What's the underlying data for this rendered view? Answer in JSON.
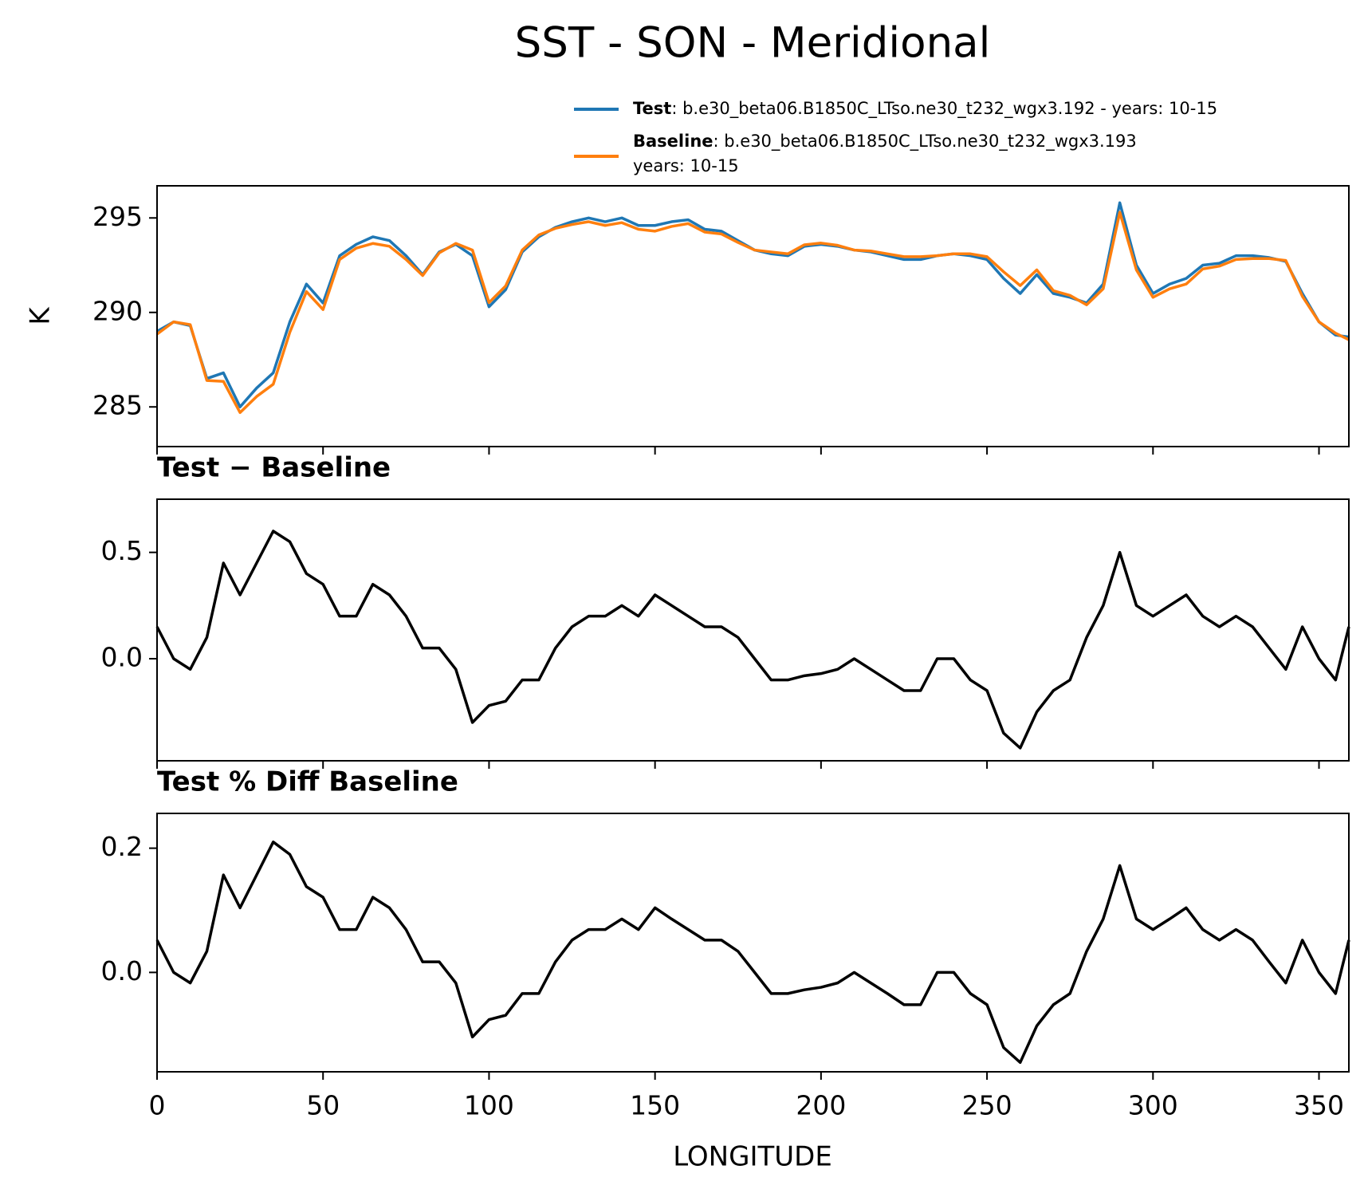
{
  "title": "SST - SON - Meridional",
  "xlabel": "LONGITUDE",
  "chart_data": [
    {
      "type": "line",
      "ylabel": "K",
      "x": [
        0,
        5,
        10,
        15,
        20,
        25,
        30,
        35,
        40,
        45,
        50,
        55,
        60,
        65,
        70,
        75,
        80,
        85,
        90,
        95,
        100,
        105,
        110,
        115,
        120,
        125,
        130,
        135,
        140,
        145,
        150,
        155,
        160,
        165,
        170,
        175,
        180,
        185,
        190,
        195,
        200,
        205,
        210,
        215,
        220,
        225,
        230,
        235,
        240,
        245,
        250,
        255,
        260,
        265,
        270,
        275,
        280,
        285,
        290,
        295,
        300,
        305,
        310,
        315,
        320,
        325,
        330,
        335,
        340,
        345,
        350,
        355,
        359
      ],
      "series": [
        {
          "name": "Test",
          "desc": ": b.e30_beta06.B1850C_LTso.ne30_t232_wgx3.192 - years: 10-15",
          "color": "#1f77b4",
          "values": [
            289.0,
            289.5,
            289.3,
            286.5,
            286.8,
            285.0,
            286.0,
            286.8,
            289.5,
            291.5,
            290.5,
            293.0,
            293.6,
            294.0,
            293.8,
            293.0,
            292.0,
            293.2,
            293.6,
            293.0,
            290.3,
            291.2,
            293.2,
            294.0,
            294.5,
            294.8,
            295.0,
            294.8,
            295.0,
            294.6,
            294.6,
            294.8,
            294.9,
            294.4,
            294.3,
            293.8,
            293.3,
            293.1,
            293.0,
            293.5,
            293.6,
            293.5,
            293.3,
            293.2,
            293.0,
            292.8,
            292.8,
            293.0,
            293.1,
            293.0,
            292.8,
            291.8,
            291.0,
            292.0,
            291.0,
            290.8,
            290.5,
            291.5,
            295.8,
            292.5,
            291.0,
            291.5,
            291.8,
            292.5,
            292.6,
            293.0,
            293.0,
            292.9,
            292.7,
            291.0,
            289.5,
            288.8,
            288.7
          ]
        },
        {
          "name": "Baseline",
          "desc": ": b.e30_beta06.B1850C_LTso.ne30_t232_wgx3.193",
          "desc2": "years: 10-15",
          "color": "#ff7f0e",
          "values": [
            288.85,
            289.5,
            289.35,
            286.4,
            286.35,
            284.7,
            285.55,
            286.2,
            288.95,
            291.1,
            290.15,
            292.8,
            293.4,
            293.65,
            293.5,
            292.8,
            291.95,
            293.15,
            293.65,
            293.3,
            290.52,
            291.4,
            293.3,
            294.1,
            294.45,
            294.65,
            294.8,
            294.6,
            294.75,
            294.4,
            294.3,
            294.55,
            294.7,
            294.25,
            294.15,
            293.7,
            293.3,
            293.2,
            293.1,
            293.58,
            293.67,
            293.55,
            293.3,
            293.25,
            293.1,
            292.95,
            292.95,
            293.0,
            293.1,
            293.1,
            292.95,
            292.15,
            291.42,
            292.25,
            291.15,
            290.9,
            290.4,
            291.25,
            295.3,
            292.25,
            290.8,
            291.25,
            291.5,
            292.3,
            292.45,
            292.8,
            292.85,
            292.85,
            292.75,
            290.85,
            289.5,
            288.9,
            288.55
          ]
        }
      ],
      "xlim": [
        0,
        359
      ],
      "xticks": [
        0,
        50,
        100,
        150,
        200,
        250,
        300,
        350
      ],
      "ylim": [
        282.9,
        296.7
      ],
      "yticks": [
        285,
        290,
        295
      ]
    },
    {
      "type": "line",
      "title": "Test − Baseline",
      "x": [
        0,
        5,
        10,
        15,
        20,
        25,
        30,
        35,
        40,
        45,
        50,
        55,
        60,
        65,
        70,
        75,
        80,
        85,
        90,
        95,
        100,
        105,
        110,
        115,
        120,
        125,
        130,
        135,
        140,
        145,
        150,
        155,
        160,
        165,
        170,
        175,
        180,
        185,
        190,
        195,
        200,
        205,
        210,
        215,
        220,
        225,
        230,
        235,
        240,
        245,
        250,
        255,
        260,
        265,
        270,
        275,
        280,
        285,
        290,
        295,
        300,
        305,
        310,
        315,
        320,
        325,
        330,
        335,
        340,
        345,
        350,
        355,
        359
      ],
      "series": [
        {
          "color": "#000000",
          "values": [
            0.15,
            0.0,
            -0.05,
            0.1,
            0.45,
            0.3,
            0.45,
            0.6,
            0.55,
            0.4,
            0.35,
            0.2,
            0.2,
            0.35,
            0.3,
            0.2,
            0.05,
            0.05,
            -0.05,
            -0.3,
            -0.22,
            -0.2,
            -0.1,
            -0.1,
            0.05,
            0.15,
            0.2,
            0.2,
            0.25,
            0.2,
            0.3,
            0.25,
            0.2,
            0.15,
            0.15,
            0.1,
            0.0,
            -0.1,
            -0.1,
            -0.08,
            -0.07,
            -0.05,
            0.0,
            -0.05,
            -0.1,
            -0.15,
            -0.15,
            0.0,
            0.0,
            -0.1,
            -0.15,
            -0.35,
            -0.42,
            -0.25,
            -0.15,
            -0.1,
            0.1,
            0.25,
            0.5,
            0.25,
            0.2,
            0.25,
            0.3,
            0.2,
            0.15,
            0.2,
            0.15,
            0.05,
            -0.05,
            0.15,
            0.0,
            -0.1,
            0.15
          ]
        }
      ],
      "xlim": [
        0,
        359
      ],
      "xticks": [
        0,
        50,
        100,
        150,
        200,
        250,
        300,
        350
      ],
      "ylim": [
        -0.48,
        0.75
      ],
      "yticks": [
        {
          "value": 0,
          "label": "0.0"
        },
        0.5
      ]
    },
    {
      "type": "line",
      "title": "Test % Diff Baseline",
      "x": [
        0,
        5,
        10,
        15,
        20,
        25,
        30,
        35,
        40,
        45,
        50,
        55,
        60,
        65,
        70,
        75,
        80,
        85,
        90,
        95,
        100,
        105,
        110,
        115,
        120,
        125,
        130,
        135,
        140,
        145,
        150,
        155,
        160,
        165,
        170,
        175,
        180,
        185,
        190,
        195,
        200,
        205,
        210,
        215,
        220,
        225,
        230,
        235,
        240,
        245,
        250,
        255,
        260,
        265,
        270,
        275,
        280,
        285,
        290,
        295,
        300,
        305,
        310,
        315,
        320,
        325,
        330,
        335,
        340,
        345,
        350,
        355,
        359
      ],
      "series": [
        {
          "color": "#000000",
          "values": [
            0.052,
            0.0,
            -0.017,
            0.034,
            0.157,
            0.104,
            0.157,
            0.21,
            0.19,
            0.138,
            0.121,
            0.069,
            0.069,
            0.121,
            0.104,
            0.069,
            0.017,
            0.017,
            -0.017,
            -0.104,
            -0.076,
            -0.069,
            -0.034,
            -0.034,
            0.017,
            0.052,
            0.069,
            0.069,
            0.086,
            0.069,
            0.104,
            0.086,
            0.069,
            0.052,
            0.052,
            0.034,
            0.0,
            -0.034,
            -0.034,
            -0.028,
            -0.024,
            -0.017,
            0.0,
            -0.017,
            -0.034,
            -0.052,
            -0.052,
            0.0,
            0.0,
            -0.034,
            -0.052,
            -0.121,
            -0.145,
            -0.086,
            -0.052,
            -0.034,
            0.034,
            0.086,
            0.172,
            0.086,
            0.069,
            0.086,
            0.104,
            0.069,
            0.052,
            0.069,
            0.052,
            0.017,
            -0.017,
            0.052,
            0.0,
            -0.034,
            0.052
          ]
        }
      ],
      "xlim": [
        0,
        359
      ],
      "xticks": [
        0,
        50,
        100,
        150,
        200,
        250,
        300,
        350
      ],
      "xtick_labels": true,
      "ylim": [
        -0.16,
        0.256
      ],
      "yticks": [
        {
          "value": 0,
          "label": "0.0"
        },
        0.2
      ]
    }
  ]
}
